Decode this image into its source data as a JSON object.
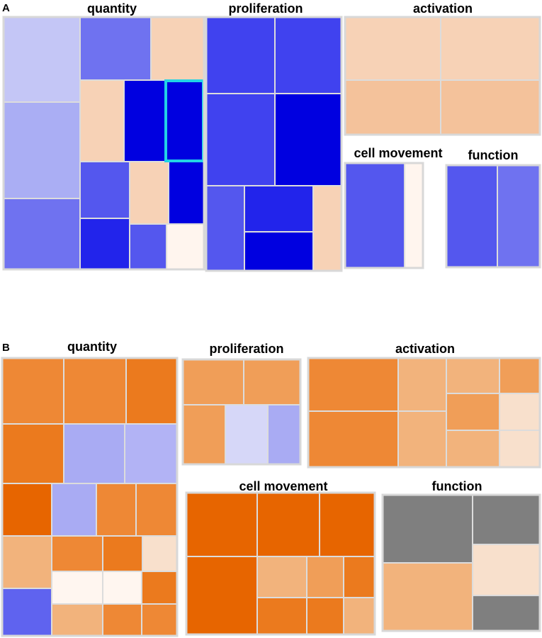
{
  "chart_data": {
    "type": "treemap",
    "description_note": "Heatmap-style treemaps of biological functions; tile colour encodes a z-score category.",
    "colors": {
      "blue_1": "#c4c6f6",
      "blue_2": "#aaaef4",
      "blue_3": "#6f72f0",
      "blue_4": "#5457ee",
      "blue_5": "#4042ef",
      "blue_6": "#2224eb",
      "blue_7": "#0000e0",
      "peach_1": "#f7d2b6",
      "peach_2": "#f4c29b",
      "peach_3": "#fff5ee",
      "orange_1": "#ee8835",
      "orange_2": "#eb7a1e",
      "orange_3": "#e76500",
      "orange_4": "#f09e58",
      "orange_5": "#f2b37c",
      "orange_6": "#f8e0cc",
      "orange_7": "#fff6f0",
      "lav_1": "#a9abf3",
      "lav_2": "#d6d7f8",
      "lav_3": "#b2b3f5",
      "blue_deep": "#5f63ef",
      "gray_1": "#7f7f7f",
      "highlight": "#22d3e6"
    },
    "panels": [
      {
        "letter": "A",
        "blocks": [
          {
            "title": "quantity",
            "tiles": [
              {
                "color": "blue_1"
              },
              {
                "color": "blue_2"
              },
              {
                "color": "blue_3"
              },
              {
                "color": "blue_3"
              },
              {
                "color": "peach_1"
              },
              {
                "color": "peach_1"
              },
              {
                "color": "blue_7"
              },
              {
                "color": "blue_7",
                "highlight": true
              },
              {
                "color": "blue_4"
              },
              {
                "color": "peach_1"
              },
              {
                "color": "blue_7"
              },
              {
                "color": "blue_6"
              },
              {
                "color": "blue_4"
              },
              {
                "color": "peach_3"
              }
            ]
          },
          {
            "title": "proliferation",
            "tiles": [
              {
                "color": "blue_5"
              },
              {
                "color": "blue_5"
              },
              {
                "color": "blue_5"
              },
              {
                "color": "blue_7"
              },
              {
                "color": "blue_4"
              },
              {
                "color": "blue_6"
              },
              {
                "color": "blue_7"
              },
              {
                "color": "peach_1"
              }
            ]
          },
          {
            "title": "activation",
            "tiles": [
              {
                "color": "peach_1"
              },
              {
                "color": "peach_1"
              },
              {
                "color": "peach_2"
              },
              {
                "color": "peach_2"
              }
            ]
          },
          {
            "title": "cell movement",
            "tiles": [
              {
                "color": "blue_4"
              },
              {
                "color": "peach_3"
              }
            ]
          },
          {
            "title": "function",
            "tiles": [
              {
                "color": "blue_4"
              },
              {
                "color": "blue_3"
              }
            ]
          }
        ]
      },
      {
        "letter": "B",
        "blocks": [
          {
            "title": "quantity",
            "tiles": [
              {
                "color": "orange_1"
              },
              {
                "color": "orange_1"
              },
              {
                "color": "orange_2"
              },
              {
                "color": "orange_2"
              },
              {
                "color": "lav_1"
              },
              {
                "color": "lav_3"
              },
              {
                "color": "orange_3"
              },
              {
                "color": "lav_1"
              },
              {
                "color": "orange_1"
              },
              {
                "color": "orange_1"
              },
              {
                "color": "orange_5"
              },
              {
                "color": "orange_1"
              },
              {
                "color": "orange_2"
              },
              {
                "color": "orange_6"
              },
              {
                "color": "orange_7"
              },
              {
                "color": "orange_7"
              },
              {
                "color": "orange_2"
              },
              {
                "color": "blue_deep"
              },
              {
                "color": "orange_5"
              },
              {
                "color": "orange_1"
              },
              {
                "color": "orange_1"
              }
            ]
          },
          {
            "title": "proliferation",
            "tiles": [
              {
                "color": "orange_4"
              },
              {
                "color": "orange_4"
              },
              {
                "color": "orange_4"
              },
              {
                "color": "lav_2"
              },
              {
                "color": "lav_1"
              }
            ]
          },
          {
            "title": "activation",
            "tiles": [
              {
                "color": "orange_1"
              },
              {
                "color": "orange_5"
              },
              {
                "color": "orange_5"
              },
              {
                "color": "orange_4"
              },
              {
                "color": "orange_1"
              },
              {
                "color": "orange_5"
              },
              {
                "color": "orange_4"
              },
              {
                "color": "orange_6"
              },
              {
                "color": "orange_5"
              },
              {
                "color": "orange_6"
              }
            ]
          },
          {
            "title": "cell movement",
            "tiles": [
              {
                "color": "orange_3"
              },
              {
                "color": "orange_3"
              },
              {
                "color": "orange_3"
              },
              {
                "color": "orange_3"
              },
              {
                "color": "orange_5"
              },
              {
                "color": "orange_4"
              },
              {
                "color": "orange_2"
              },
              {
                "color": "orange_2"
              },
              {
                "color": "orange_2"
              },
              {
                "color": "orange_5"
              }
            ]
          },
          {
            "title": "function",
            "tiles": [
              {
                "color": "gray_1"
              },
              {
                "color": "gray_1"
              },
              {
                "color": "orange_5"
              },
              {
                "color": "orange_6"
              },
              {
                "color": "gray_1"
              }
            ]
          }
        ]
      }
    ]
  }
}
